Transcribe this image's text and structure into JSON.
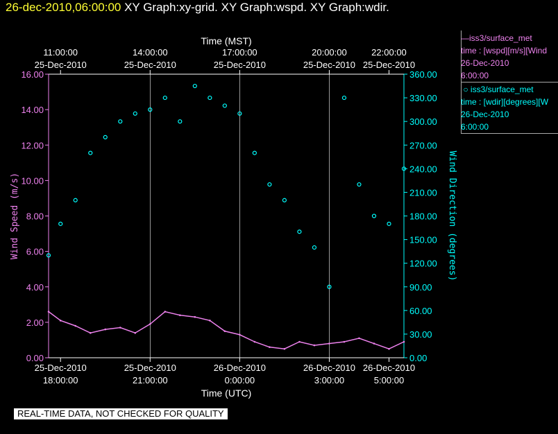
{
  "header": {
    "datetime": "26-dec-2010,06:00:00",
    "graphs": "XY Graph:xy-grid.  XY Graph:wspd.  XY Graph:wdir."
  },
  "legend": {
    "speed": {
      "name": "iss3/surface_met",
      "line1": "time : [wspd][m/s][Wind",
      "line2": "26-Dec-2010",
      "line3": "6:00:00"
    },
    "direction": {
      "name": "iss3/surface_met",
      "line1": "time : [wdir][degrees][W",
      "line2": "26-Dec-2010",
      "line3": "6:00:00"
    }
  },
  "footer": {
    "quality_note": "REAL-TIME DATA, NOT CHECKED FOR QUALITY"
  },
  "colors": {
    "speed": "#ee82ee",
    "direction": "#00ffff",
    "axis": "#ffffff",
    "grid": "#ffffff",
    "title_time": "#ffff33"
  },
  "chart_data": {
    "type": "scatter",
    "title": "",
    "top_axis_label": "Time (MST)",
    "bottom_axis_label": "Time (UTC)",
    "ylabel": "Wind Speed (m/s)",
    "y2label": "Wind Direction (degrees)",
    "xlim_hours_utc": [
      17.6,
      29.5
    ],
    "ylim": [
      0,
      16
    ],
    "y2lim": [
      0,
      360
    ],
    "grid": true,
    "y_ticks": [
      "0.00",
      "2.00",
      "4.00",
      "6.00",
      "8.00",
      "10.00",
      "12.00",
      "14.00",
      "16.00"
    ],
    "y2_ticks": [
      "0.00",
      "30.00",
      "60.00",
      "90.00",
      "120.00",
      "150.00",
      "180.00",
      "210.00",
      "240.00",
      "270.00",
      "300.00",
      "330.00",
      "360.00"
    ],
    "bottom_ticks": [
      {
        "hour": 18,
        "line1": "25-Dec-2010",
        "line2": "18:00:00"
      },
      {
        "hour": 21,
        "line1": "25-Dec-2010",
        "line2": "21:00:00"
      },
      {
        "hour": 24,
        "line1": "26-Dec-2010",
        "line2": "0:00:00"
      },
      {
        "hour": 27,
        "line1": "26-Dec-2010",
        "line2": "3:00:00"
      },
      {
        "hour": 29,
        "line1": "26-Dec-2010",
        "line2": "5:00:00"
      }
    ],
    "top_ticks": [
      {
        "hour": 18,
        "line1": "11:00:00",
        "line2": "25-Dec-2010"
      },
      {
        "hour": 21,
        "line1": "14:00:00",
        "line2": "25-Dec-2010"
      },
      {
        "hour": 24,
        "line1": "17:00:00",
        "line2": "25-Dec-2010"
      },
      {
        "hour": 27,
        "line1": "20:00:00",
        "line2": "25-Dec-2010"
      },
      {
        "hour": 29,
        "line1": "22:00:00",
        "line2": "25-Dec-2010"
      }
    ],
    "gridlines_hour": [
      21,
      24,
      27
    ],
    "series": [
      {
        "name": "iss3/surface_met wspd",
        "style": "line",
        "x": [
          17.6,
          18.0,
          18.5,
          19.0,
          19.5,
          20.0,
          20.5,
          21.0,
          21.5,
          22.0,
          22.5,
          23.0,
          23.5,
          24.0,
          24.5,
          25.0,
          25.5,
          26.0,
          26.5,
          27.0,
          27.5,
          28.0,
          28.5,
          29.0,
          29.5
        ],
        "values": [
          2.6,
          2.1,
          1.8,
          1.4,
          1.6,
          1.7,
          1.4,
          1.9,
          2.6,
          2.4,
          2.3,
          2.1,
          1.5,
          1.3,
          0.9,
          0.6,
          0.5,
          0.9,
          0.7,
          0.8,
          0.9,
          1.1,
          0.8,
          0.5,
          0.9
        ]
      },
      {
        "name": "iss3/surface_met wdir",
        "style": "points",
        "x": [
          17.6,
          18.0,
          18.5,
          19.0,
          19.5,
          20.0,
          20.5,
          21.0,
          21.5,
          22.0,
          22.5,
          23.0,
          23.5,
          24.0,
          24.5,
          25.0,
          25.5,
          26.0,
          26.5,
          27.0,
          27.5,
          28.0,
          28.5,
          29.0,
          29.5
        ],
        "values": [
          130,
          170,
          200,
          260,
          280,
          300,
          310,
          315,
          330,
          300,
          345,
          330,
          320,
          310,
          260,
          220,
          200,
          160,
          140,
          90,
          330,
          220,
          180,
          170,
          240
        ]
      }
    ]
  }
}
